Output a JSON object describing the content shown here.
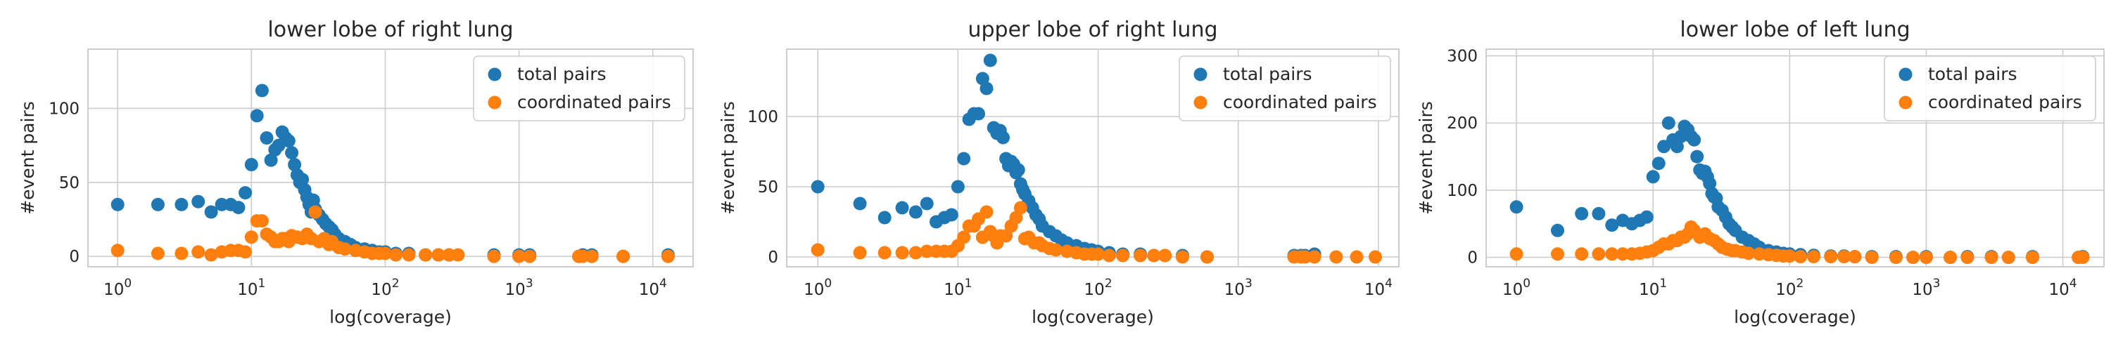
{
  "colors": {
    "total": "#1f77b4",
    "coordinated": "#ff7f0e",
    "grid": "#cccccc",
    "frame": "#cccccc"
  },
  "chart_data": [
    {
      "type": "scatter",
      "title": "lower lobe of right lung",
      "xlabel": "log(coverage)",
      "ylabel": "#event pairs",
      "xscale": "log",
      "xlim": [
        0.6,
        20000
      ],
      "ylim": [
        -7,
        140
      ],
      "xticks": [
        1,
        10,
        100,
        1000,
        10000
      ],
      "xtick_labels": [
        {
          "b": "10",
          "e": "0"
        },
        {
          "b": "10",
          "e": "1"
        },
        {
          "b": "10",
          "e": "2"
        },
        {
          "b": "10",
          "e": "3"
        },
        {
          "b": "10",
          "e": "4"
        }
      ],
      "yticks": [
        0,
        50,
        100
      ],
      "grid": true,
      "legend_position": "top-right",
      "series": [
        {
          "name": "total pairs",
          "color_key": "total",
          "x": [
            1,
            2,
            3,
            4,
            5,
            6,
            7,
            8,
            9,
            10,
            11,
            12,
            13,
            14,
            15,
            16,
            17,
            18,
            19,
            20,
            21,
            22,
            23,
            24,
            25,
            26,
            27,
            28,
            29,
            30,
            32,
            34,
            36,
            38,
            40,
            42,
            45,
            50,
            55,
            60,
            70,
            80,
            90,
            100,
            120,
            150,
            200,
            250,
            300,
            650,
            1000,
            1200,
            2800,
            3000,
            3500,
            6000,
            13000
          ],
          "y": [
            35,
            35,
            35,
            37,
            30,
            35,
            35,
            33,
            43,
            62,
            95,
            112,
            80,
            65,
            72,
            75,
            84,
            80,
            78,
            70,
            62,
            55,
            50,
            52,
            45,
            40,
            35,
            30,
            38,
            32,
            28,
            25,
            22,
            20,
            18,
            15,
            12,
            10,
            8,
            6,
            5,
            4,
            3,
            3,
            2,
            2,
            1,
            1,
            1,
            1,
            1,
            1,
            0,
            1,
            1,
            0,
            1
          ]
        },
        {
          "name": "coordinated pairs",
          "color_key": "coordinated",
          "x": [
            1,
            2,
            3,
            4,
            5,
            6,
            7,
            8,
            9,
            10,
            11,
            12,
            13,
            14,
            15,
            16,
            17,
            18,
            19,
            20,
            22,
            24,
            26,
            28,
            30,
            32,
            35,
            38,
            40,
            45,
            50,
            60,
            70,
            80,
            90,
            100,
            120,
            150,
            200,
            250,
            300,
            350,
            650,
            1000,
            1200,
            2800,
            3000,
            3500,
            6000,
            13000
          ],
          "y": [
            4,
            2,
            2,
            3,
            1,
            3,
            4,
            4,
            3,
            13,
            24,
            24,
            15,
            13,
            10,
            10,
            12,
            12,
            10,
            14,
            13,
            12,
            15,
            12,
            30,
            10,
            12,
            8,
            10,
            6,
            5,
            4,
            3,
            2,
            2,
            2,
            1,
            1,
            1,
            1,
            1,
            1,
            0,
            0,
            0,
            0,
            0,
            0,
            0,
            0
          ]
        }
      ]
    },
    {
      "type": "scatter",
      "title": "upper lobe of right lung",
      "xlabel": "log(coverage)",
      "ylabel": "#event pairs",
      "xscale": "log",
      "xlim": [
        0.6,
        14000
      ],
      "ylim": [
        -7,
        148
      ],
      "xticks": [
        1,
        10,
        100,
        1000,
        10000
      ],
      "xtick_labels": [
        {
          "b": "10",
          "e": "0"
        },
        {
          "b": "10",
          "e": "1"
        },
        {
          "b": "10",
          "e": "2"
        },
        {
          "b": "10",
          "e": "3"
        },
        {
          "b": "10",
          "e": "4"
        }
      ],
      "yticks": [
        0,
        50,
        100
      ],
      "grid": true,
      "legend_position": "top-right",
      "series": [
        {
          "name": "total pairs",
          "color_key": "total",
          "x": [
            1,
            2,
            3,
            4,
            5,
            6,
            7,
            8,
            9,
            10,
            11,
            12,
            13,
            14,
            15,
            16,
            17,
            18,
            19,
            20,
            21,
            22,
            23,
            24,
            25,
            26,
            27,
            28,
            29,
            30,
            32,
            34,
            36,
            38,
            40,
            45,
            50,
            55,
            60,
            70,
            80,
            90,
            100,
            120,
            150,
            200,
            250,
            300,
            400,
            600,
            2500,
            2800,
            3000,
            3500
          ],
          "y": [
            50,
            38,
            28,
            35,
            32,
            38,
            25,
            28,
            30,
            50,
            70,
            98,
            102,
            102,
            127,
            120,
            140,
            92,
            88,
            90,
            85,
            70,
            65,
            68,
            66,
            60,
            62,
            52,
            48,
            45,
            40,
            35,
            30,
            27,
            22,
            18,
            15,
            12,
            10,
            8,
            6,
            5,
            4,
            3,
            2,
            2,
            1,
            1,
            1,
            0,
            1,
            1,
            1,
            2
          ]
        },
        {
          "name": "coordinated pairs",
          "color_key": "coordinated",
          "x": [
            1,
            2,
            3,
            4,
            5,
            6,
            7,
            8,
            9,
            10,
            11,
            12,
            13,
            14,
            15,
            16,
            17,
            18,
            19,
            20,
            22,
            24,
            26,
            28,
            30,
            32,
            35,
            38,
            40,
            45,
            50,
            60,
            70,
            80,
            90,
            100,
            120,
            150,
            200,
            250,
            300,
            400,
            600,
            2500,
            2800,
            3000,
            3500,
            5000,
            7000,
            9500
          ],
          "y": [
            5,
            3,
            3,
            3,
            3,
            4,
            4,
            4,
            4,
            8,
            14,
            22,
            22,
            27,
            14,
            32,
            18,
            15,
            10,
            15,
            15,
            22,
            28,
            35,
            13,
            14,
            10,
            10,
            8,
            6,
            5,
            4,
            3,
            2,
            2,
            2,
            1,
            1,
            1,
            1,
            1,
            0,
            0,
            0,
            0,
            0,
            0,
            0,
            0,
            0
          ]
        }
      ]
    },
    {
      "type": "scatter",
      "title": "lower lobe of left lung",
      "xlabel": "log(coverage)",
      "ylabel": "#event pairs",
      "xscale": "log",
      "xlim": [
        0.6,
        20000
      ],
      "ylim": [
        -14,
        310
      ],
      "xticks": [
        1,
        10,
        100,
        1000,
        10000
      ],
      "xtick_labels": [
        {
          "b": "10",
          "e": "0"
        },
        {
          "b": "10",
          "e": "1"
        },
        {
          "b": "10",
          "e": "2"
        },
        {
          "b": "10",
          "e": "3"
        },
        {
          "b": "10",
          "e": "4"
        }
      ],
      "yticks": [
        0,
        100,
        200,
        300
      ],
      "grid": true,
      "legend_position": "top-right",
      "series": [
        {
          "name": "total pairs",
          "color_key": "total",
          "x": [
            1,
            2,
            3,
            4,
            5,
            6,
            7,
            8,
            9,
            10,
            11,
            12,
            13,
            14,
            15,
            16,
            17,
            18,
            19,
            20,
            21,
            22,
            23,
            24,
            25,
            26,
            27,
            28,
            29,
            30,
            32,
            34,
            36,
            38,
            40,
            45,
            50,
            55,
            60,
            70,
            80,
            90,
            100,
            120,
            150,
            200,
            250,
            300,
            400,
            600,
            800,
            1000,
            1500,
            2000,
            3000,
            4000,
            6000,
            13000,
            14000
          ],
          "y": [
            75,
            40,
            65,
            65,
            48,
            55,
            50,
            55,
            60,
            120,
            140,
            165,
            200,
            175,
            165,
            180,
            195,
            190,
            180,
            175,
            150,
            130,
            125,
            128,
            120,
            110,
            95,
            90,
            88,
            75,
            70,
            60,
            50,
            45,
            40,
            30,
            25,
            20,
            15,
            10,
            8,
            6,
            5,
            4,
            3,
            2,
            2,
            1,
            1,
            1,
            0,
            1,
            0,
            1,
            1,
            0,
            1,
            0,
            1
          ]
        },
        {
          "name": "coordinated pairs",
          "color_key": "coordinated",
          "x": [
            1,
            2,
            3,
            4,
            5,
            6,
            7,
            8,
            9,
            10,
            11,
            12,
            13,
            14,
            15,
            16,
            17,
            18,
            19,
            20,
            22,
            24,
            26,
            28,
            30,
            32,
            35,
            38,
            40,
            45,
            50,
            60,
            70,
            80,
            90,
            100,
            120,
            150,
            200,
            250,
            300,
            400,
            600,
            800,
            1000,
            1500,
            2000,
            3000,
            4000,
            6000,
            13000,
            14000
          ],
          "y": [
            5,
            5,
            5,
            5,
            5,
            5,
            5,
            6,
            8,
            10,
            15,
            20,
            20,
            25,
            25,
            30,
            30,
            35,
            45,
            40,
            30,
            35,
            28,
            25,
            20,
            15,
            12,
            10,
            10,
            8,
            6,
            5,
            4,
            3,
            2,
            2,
            1,
            1,
            1,
            1,
            1,
            0,
            0,
            0,
            0,
            0,
            0,
            0,
            0,
            0,
            0,
            0
          ]
        }
      ]
    }
  ]
}
